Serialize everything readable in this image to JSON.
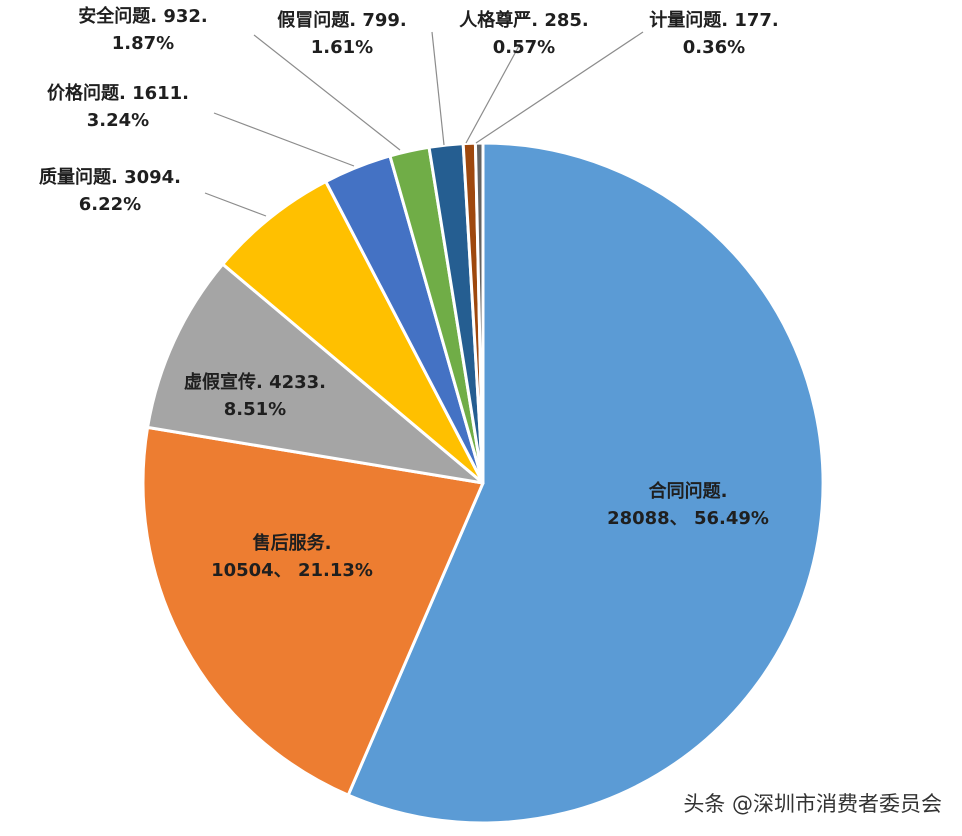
{
  "chart_data": {
    "type": "pie",
    "categories": [
      "合同问题",
      "售后服务",
      "虚假宣传",
      "质量问题",
      "价格问题",
      "安全问题",
      "假冒问题",
      "人格尊严",
      "计量问题"
    ],
    "values": [
      28088,
      10504,
      4233,
      3094,
      1611,
      932,
      799,
      285,
      177
    ],
    "percent_labels": [
      "56.49%",
      "21.13%",
      "8.51%",
      "6.22%",
      "3.24%",
      "1.87%",
      "1.61%",
      "0.57%",
      "0.36%"
    ],
    "colors": [
      "#5b9bd5",
      "#ed7d31",
      "#a5a5a5",
      "#ffc000",
      "#4472c4",
      "#70ad47",
      "#255e91",
      "#9e480e",
      "#636363"
    ],
    "start": "12 o'clock",
    "direction": "clockwise",
    "legend": "none"
  },
  "watermark": "头条 @深圳市消费者委员会"
}
